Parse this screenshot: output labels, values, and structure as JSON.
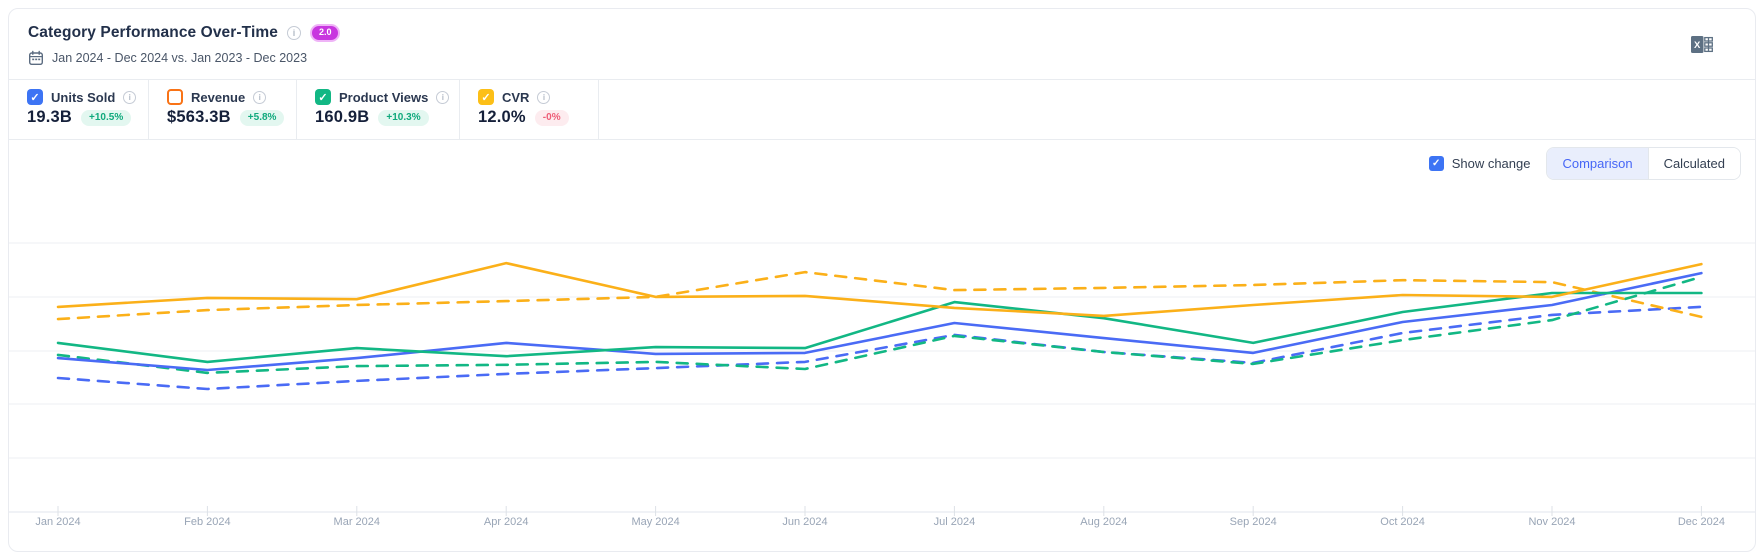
{
  "header": {
    "title": "Category Performance Over-Time",
    "version_badge": "2.0",
    "date_range": "Jan 2024 - Dec 2024 vs. Jan 2023 - Dec 2023"
  },
  "export": {
    "icon": "excel-export-icon"
  },
  "metrics": {
    "items": [
      {
        "label": "Units Sold",
        "value": "19.3B",
        "change": "+10.5%",
        "change_direction": "up",
        "checked": true,
        "color": "#3d74f4"
      },
      {
        "label": "Revenue",
        "value": "$563.3B",
        "change": "+5.8%",
        "change_direction": "up",
        "checked": false,
        "color": "#f97316"
      },
      {
        "label": "Product Views",
        "value": "160.9B",
        "change": "+10.3%",
        "change_direction": "up",
        "checked": true,
        "color": "#12b784"
      },
      {
        "label": "CVR",
        "value": "12.0%",
        "change": "-0%",
        "change_direction": "down",
        "checked": true,
        "color": "#fcbf17"
      }
    ]
  },
  "controls": {
    "show_change_label": "Show change",
    "show_change_checked": true,
    "view_options": [
      "Comparison",
      "Calculated"
    ],
    "selected_view": "Comparison"
  },
  "chart_data": {
    "type": "line",
    "title": "Category Performance Over-Time",
    "categories": [
      "Jan 2024",
      "Feb 2024",
      "Mar 2024",
      "Apr 2024",
      "May 2024",
      "Jun 2024",
      "Jul 2024",
      "Aug 2024",
      "Sep 2024",
      "Oct 2024",
      "Nov 2024",
      "Dec 2024"
    ],
    "xlabel": "",
    "ylabel": "",
    "y_axis_note": "no y-axis tick labels shown; values are relative height, 0-100 scale of plot area",
    "ylim": [
      0,
      100
    ],
    "grid": "horizontal",
    "legend": "none (series toggled via metric cards above)",
    "series": [
      {
        "name": "Units Sold (Jan 2024 - Dec 2024)",
        "metric": "Units Sold",
        "period": "2024",
        "style": "solid",
        "color": "#4a6bf5",
        "values": [
          47.8,
          44.1,
          47.8,
          52.5,
          49.1,
          49.4,
          58.7,
          54.0,
          49.4,
          59.0,
          64.3,
          74.2
        ]
      },
      {
        "name": "Units Sold (Jan 2023 - Dec 2023)",
        "metric": "Units Sold",
        "period": "2023",
        "style": "dashed",
        "color": "#4a6bf5",
        "values": [
          41.6,
          38.2,
          40.7,
          42.9,
          44.7,
          46.6,
          55.0,
          49.7,
          46.3,
          55.6,
          61.2,
          63.7
        ]
      },
      {
        "name": "Product Views (Jan 2024 - Dec 2024)",
        "metric": "Product Views",
        "period": "2024",
        "style": "solid",
        "color": "#12b784",
        "values": [
          52.5,
          46.6,
          50.9,
          48.4,
          51.2,
          50.9,
          65.2,
          60.2,
          52.5,
          62.1,
          68.0,
          68.0
        ]
      },
      {
        "name": "Product Views (Jan 2023 - Dec 2023)",
        "metric": "Product Views",
        "period": "2023",
        "style": "dashed",
        "color": "#12b784",
        "values": [
          48.8,
          43.2,
          45.3,
          45.7,
          46.6,
          44.4,
          54.7,
          49.7,
          46.0,
          53.4,
          59.6,
          73.0
        ]
      },
      {
        "name": "CVR (Jan 2024 - Dec 2024)",
        "metric": "CVR",
        "period": "2024",
        "style": "solid",
        "color": "#fbb019",
        "values": [
          63.7,
          66.5,
          66.1,
          77.3,
          66.8,
          67.1,
          63.4,
          60.9,
          64.3,
          67.4,
          66.8,
          77.0
        ]
      },
      {
        "name": "CVR (Jan 2023 - Dec 2023)",
        "metric": "CVR",
        "period": "2023",
        "style": "dashed",
        "color": "#fbb019",
        "values": [
          59.9,
          62.7,
          64.3,
          65.5,
          66.8,
          74.5,
          68.9,
          69.6,
          70.5,
          72.0,
          71.4,
          60.6
        ]
      }
    ]
  }
}
